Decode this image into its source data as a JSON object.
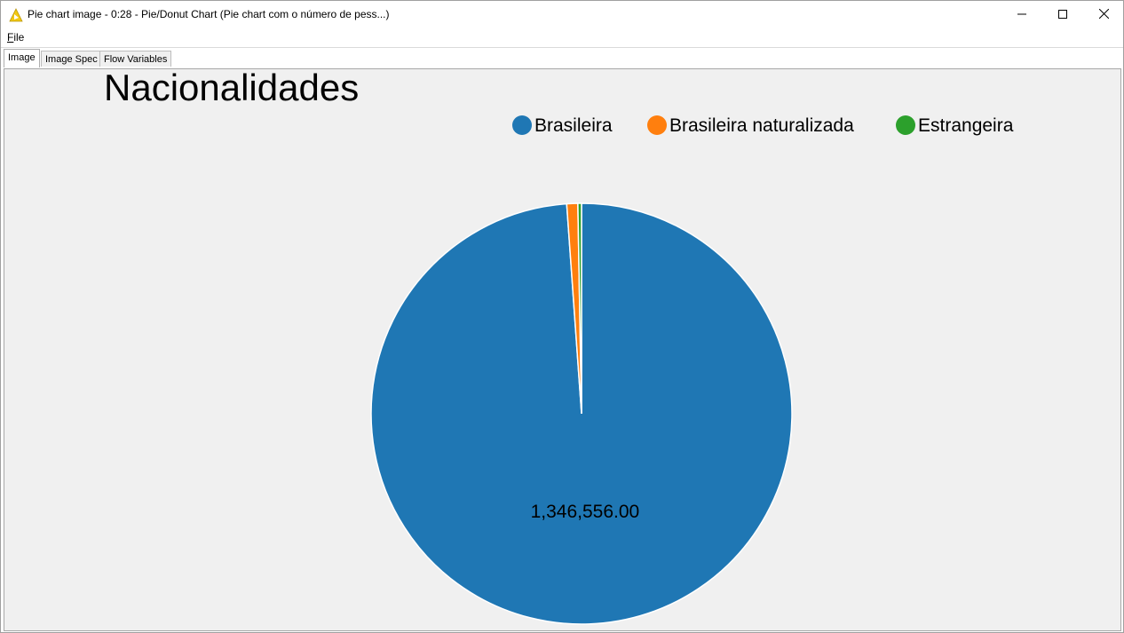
{
  "window": {
    "title": "Pie chart image - 0:28 - Pie/Donut Chart (Pie chart com o número de pess...)",
    "icon": "knime-warning-triangle-icon",
    "accent_color": "#f2c811"
  },
  "menu": {
    "file_label": "File"
  },
  "tabs": [
    {
      "label": "Image",
      "selected": true
    },
    {
      "label": "Image Spec",
      "selected": false
    },
    {
      "label": "Flow Variables",
      "selected": false
    }
  ],
  "chart_data": {
    "type": "pie",
    "title": "Nacionalidades",
    "categories": [
      "Brasileira",
      "Brasileira naturalizada",
      "Estrangeira"
    ],
    "values": [
      1346556,
      11500,
      3800
    ],
    "value_labels": [
      "1,346,556.00",
      "",
      ""
    ],
    "colors": [
      "#1f77b4",
      "#ff7f0e",
      "#2ca02c"
    ],
    "legend_position": "top-right",
    "background": "#f0f0f0"
  }
}
